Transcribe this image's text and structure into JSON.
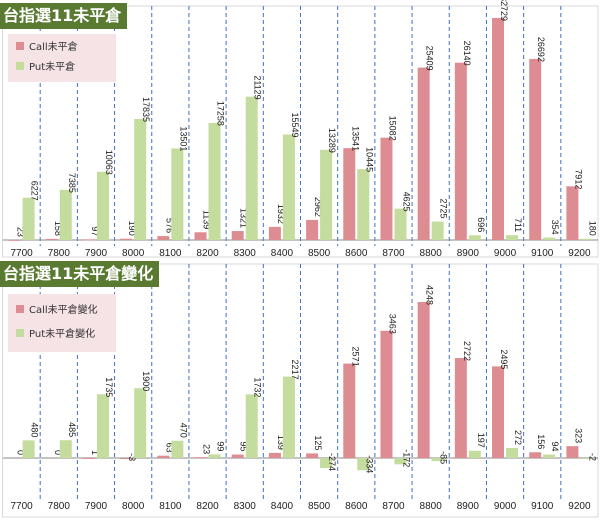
{
  "colors": {
    "call": "#dd8d92",
    "put": "#c4dc9e",
    "grid": "#3f6fc6",
    "title_bg": "#5a7a32",
    "legend_bg": "#f6e3e6"
  },
  "chart_data": [
    {
      "type": "bar",
      "title": "台指選11未平倉",
      "categories": [
        "7700",
        "7800",
        "7900",
        "8000",
        "8100",
        "8200",
        "8300",
        "8400",
        "8500",
        "8600",
        "8700",
        "8800",
        "8900",
        "9000",
        "9100",
        "9200"
      ],
      "series": [
        {
          "name": "Call未平倉",
          "values": [
            23,
            158,
            97,
            190,
            576,
            1139,
            1321,
            1932,
            2962,
            13541,
            15082,
            25409,
            26140,
            32729,
            26692,
            7912
          ]
        },
        {
          "name": "Put未平倉",
          "values": [
            6227,
            7385,
            10063,
            17835,
            13501,
            17258,
            21129,
            15549,
            13289,
            10445,
            4625,
            2725,
            696,
            711,
            354,
            180
          ]
        }
      ],
      "ylim": [
        0,
        36000
      ],
      "grid": true,
      "legend": "top-left"
    },
    {
      "type": "bar",
      "title": "台指選11未平倉變化",
      "categories": [
        "7700",
        "7800",
        "7900",
        "8000",
        "8100",
        "8200",
        "8300",
        "8400",
        "8500",
        "8600",
        "8700",
        "8800",
        "8900",
        "9000",
        "9100",
        "9200"
      ],
      "series": [
        {
          "name": "Call未平倉變化",
          "values": [
            0,
            0,
            1,
            -3,
            63,
            23,
            95,
            139,
            125,
            2571,
            3463,
            4248,
            2722,
            2495,
            156,
            323
          ]
        },
        {
          "name": "Put未平倉變化",
          "values": [
            480,
            485,
            1735,
            1900,
            470,
            99,
            1732,
            2217,
            -274,
            -334,
            -172,
            -85,
            197,
            272,
            94,
            -2
          ]
        }
      ],
      "ylim": [
        -600,
        4600
      ],
      "grid": true,
      "legend": "top-left"
    }
  ]
}
